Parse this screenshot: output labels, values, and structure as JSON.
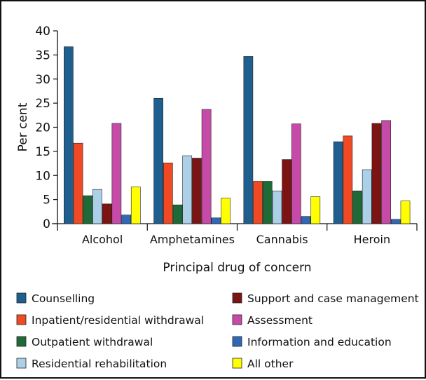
{
  "chart_data": {
    "type": "bar",
    "xlabel": "Principal drug of concern",
    "ylabel": "Per cent",
    "ylim": [
      0,
      40
    ],
    "yticks": [
      0,
      5,
      10,
      15,
      20,
      25,
      30,
      35,
      40
    ],
    "grid": false,
    "legend_position": "bottom",
    "categories": [
      "Alcohol",
      "Amphetamines",
      "Cannabis",
      "Heroin"
    ],
    "series": [
      {
        "name": "Counselling",
        "color": "#1f5f8f",
        "values": [
          36.7,
          26.0,
          34.7,
          17.0
        ]
      },
      {
        "name": "Inpatient/residential withdrawal",
        "color": "#ef4a24",
        "values": [
          16.7,
          12.6,
          8.8,
          18.2
        ]
      },
      {
        "name": "Outpatient withdrawal",
        "color": "#1f6b38",
        "values": [
          5.8,
          3.9,
          8.8,
          6.8
        ]
      },
      {
        "name": "Residential rehabilitation",
        "color": "#acd0e8",
        "values": [
          7.1,
          14.1,
          6.8,
          11.2
        ]
      },
      {
        "name": "Support and case management",
        "color": "#7d1414",
        "values": [
          4.1,
          13.6,
          13.3,
          20.8
        ]
      },
      {
        "name": "Assessment",
        "color": "#c64ba9",
        "values": [
          20.8,
          23.7,
          20.7,
          21.4
        ]
      },
      {
        "name": "Information and education",
        "color": "#2f69b6",
        "values": [
          1.8,
          1.2,
          1.5,
          0.9
        ]
      },
      {
        "name": "All other",
        "color": "#ffff00",
        "values": [
          7.6,
          5.3,
          5.6,
          4.7
        ]
      }
    ]
  }
}
